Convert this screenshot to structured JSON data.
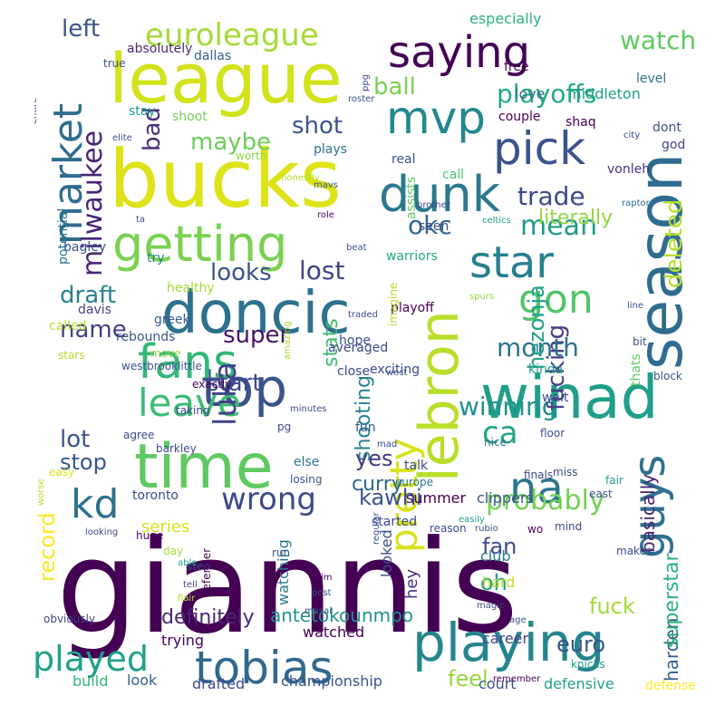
{
  "colors": {
    "background": "#ffffff",
    "palette": "viridis",
    "dark_purple": "#440154",
    "indigo": "#3b528b",
    "teal": "#21918c",
    "green": "#5ec962",
    "yellow": "#fde725"
  },
  "words": [
    {
      "text": "giannis",
      "color": "#440154"
    },
    {
      "text": "bucks",
      "color": "#dde318"
    },
    {
      "text": "season",
      "color": "#2f6c8e"
    },
    {
      "text": "league",
      "color": "#d2e21b"
    },
    {
      "text": "lebron",
      "color": "#b8de29"
    },
    {
      "text": "saying",
      "color": "#440154"
    },
    {
      "text": "doncic",
      "color": "#2c728e"
    },
    {
      "text": "time",
      "color": "#5ec962"
    },
    {
      "text": "winad",
      "color": "#1f9e89"
    },
    {
      "text": "playing",
      "color": "#25858e"
    },
    {
      "text": "guys",
      "color": "#2d708e"
    },
    {
      "text": "tobias",
      "color": "#31688e"
    },
    {
      "text": "top",
      "color": "#3b528b"
    },
    {
      "text": "getting",
      "color": "#7ad151"
    },
    {
      "text": "dunk",
      "color": "#2a788e"
    },
    {
      "text": "mvp",
      "color": "#23888e"
    },
    {
      "text": "pick",
      "color": "#3b528b"
    },
    {
      "text": "market",
      "color": "#2e6d8e"
    },
    {
      "text": "pretty",
      "color": "#d8e219"
    },
    {
      "text": "fans",
      "color": "#35b779"
    },
    {
      "text": "na",
      "color": "#2a778e"
    },
    {
      "text": "kd",
      "color": "#2c718e"
    },
    {
      "text": "star",
      "color": "#27808e"
    },
    {
      "text": "leave",
      "color": "#3dbc74"
    },
    {
      "text": "played",
      "color": "#1fa188"
    },
    {
      "text": "euroleague",
      "color": "#a5db36"
    },
    {
      "text": "gon",
      "color": "#52c569"
    },
    {
      "text": "ca",
      "color": "#20a486"
    },
    {
      "text": "wrong",
      "color": "#3e4989"
    },
    {
      "text": "luka",
      "color": "#414487"
    },
    {
      "text": "milwaukee",
      "color": "#482475"
    },
    {
      "text": "winning",
      "color": "#21918c"
    },
    {
      "text": "probably",
      "color": "#75d054"
    },
    {
      "text": "deleted",
      "color": "#b5de2b"
    },
    {
      "text": "fucking",
      "color": "#433e85"
    },
    {
      "text": "mean",
      "color": "#1e9b8a"
    },
    {
      "text": "watch",
      "color": "#5ec962"
    },
    {
      "text": "playoffs",
      "color": "#22a884"
    },
    {
      "text": "trade",
      "color": "#3e4989"
    },
    {
      "text": "maybe",
      "color": "#6ece58"
    },
    {
      "text": "shot",
      "color": "#3b528b"
    },
    {
      "text": "bad",
      "color": "#472d7b"
    },
    {
      "text": "left",
      "color": "#3b528b"
    },
    {
      "text": "ball",
      "color": "#7ad151"
    },
    {
      "text": "okc",
      "color": "#31688e"
    },
    {
      "text": "lost",
      "color": "#414487"
    },
    {
      "text": "looks",
      "color": "#3b528b"
    },
    {
      "text": "draft",
      "color": "#26828e"
    },
    {
      "text": "lot",
      "color": "#3b528b"
    },
    {
      "text": "name",
      "color": "#433e85"
    },
    {
      "text": "super",
      "color": "#471365"
    },
    {
      "text": "month",
      "color": "#2c728e"
    },
    {
      "text": "hezonja",
      "color": "#1f9e89"
    },
    {
      "text": "start",
      "color": "#3e4989"
    },
    {
      "text": "stop",
      "color": "#39568c"
    },
    {
      "text": "yes",
      "color": "#453781"
    },
    {
      "text": "kawhi",
      "color": "#3b528b"
    },
    {
      "text": "fan",
      "color": "#3e4989"
    },
    {
      "text": "oh",
      "color": "#1f9e89"
    },
    {
      "text": "fuck",
      "color": "#a0da39"
    },
    {
      "text": "euro",
      "color": "#3b528b"
    },
    {
      "text": "feel",
      "color": "#93d741"
    },
    {
      "text": "record",
      "color": "#fde725"
    },
    {
      "text": "definitely",
      "color": "#482878"
    },
    {
      "text": "antetokounmpo",
      "color": "#20928c"
    },
    {
      "text": "harden",
      "color": "#355f8d"
    },
    {
      "text": "superstar",
      "color": "#2db27d"
    },
    {
      "text": "basically",
      "color": "#482475"
    },
    {
      "text": "literally",
      "color": "#93d741"
    },
    {
      "text": "shooting",
      "color": "#26828e"
    },
    {
      "text": "curry",
      "color": "#31688e"
    },
    {
      "text": "stats",
      "color": "#3fbc73"
    },
    {
      "text": "championship",
      "color": "#3b528b"
    },
    {
      "text": "drafted",
      "color": "#3e4989"
    },
    {
      "text": "watched",
      "color": "#440154"
    },
    {
      "text": "trying",
      "color": "#440154"
    },
    {
      "text": "look",
      "color": "#355f8d"
    },
    {
      "text": "build",
      "color": "#35b779"
    },
    {
      "text": "defensive",
      "color": "#1fa188"
    },
    {
      "text": "defense",
      "color": "#fde725"
    },
    {
      "text": "court",
      "color": "#3b528b"
    },
    {
      "text": "series",
      "color": "#d8e219"
    },
    {
      "text": "watching",
      "color": "#2a788e"
    },
    {
      "text": "looked",
      "color": "#3b528b"
    },
    {
      "text": "hey",
      "color": "#46337e"
    },
    {
      "text": "club",
      "color": "#277f8e"
    },
    {
      "text": "hard",
      "color": "#bddf26"
    },
    {
      "text": "career",
      "color": "#3e4989"
    },
    {
      "text": "summer",
      "color": "#440154"
    },
    {
      "text": "clippers",
      "color": "#3b528b"
    },
    {
      "text": "especially",
      "color": "#2db27d"
    },
    {
      "text": "love",
      "color": "#2c728e"
    },
    {
      "text": "middleton",
      "color": "#1f9e89"
    },
    {
      "text": "absolutely",
      "color": "#482878"
    },
    {
      "text": "dallas",
      "color": "#355f8d"
    },
    {
      "text": "level",
      "color": "#2c728e"
    },
    {
      "text": "free",
      "color": "#440154"
    },
    {
      "text": "dont",
      "color": "#3b528b"
    },
    {
      "text": "couple",
      "color": "#440154"
    },
    {
      "text": "shaq",
      "color": "#440154"
    },
    {
      "text": "god",
      "color": "#414487"
    },
    {
      "text": "real",
      "color": "#3b528b"
    },
    {
      "text": "call",
      "color": "#4ac16d"
    },
    {
      "text": "plays",
      "color": "#2c728e"
    },
    {
      "text": "shoot",
      "color": "#75d054"
    },
    {
      "text": "stay",
      "color": "#1f9e89"
    },
    {
      "text": "true",
      "color": "#3b528b"
    },
    {
      "text": "worth",
      "color": "#8fd744"
    },
    {
      "text": "vonleh",
      "color": "#472d7b"
    },
    {
      "text": "seen",
      "color": "#3e4989"
    },
    {
      "text": "assists",
      "color": "#5ec962"
    },
    {
      "text": "warriors",
      "color": "#22a884"
    },
    {
      "text": "try",
      "color": "#26828e"
    },
    {
      "text": "healthy",
      "color": "#a5db36"
    },
    {
      "text": "bagley",
      "color": "#3b528b"
    },
    {
      "text": "potential",
      "color": "#2a788e"
    },
    {
      "text": "davis",
      "color": "#433e85"
    },
    {
      "text": "greek",
      "color": "#355f8d"
    },
    {
      "text": "called",
      "color": "#b5de2b"
    },
    {
      "text": "rebounds",
      "color": "#3b528b"
    },
    {
      "text": "averaged",
      "color": "#3e4989"
    },
    {
      "text": "playoff",
      "color": "#440154"
    },
    {
      "text": "hope",
      "color": "#3b528b"
    },
    {
      "text": "wait",
      "color": "#3e4989"
    },
    {
      "text": "bit",
      "color": "#3b528b"
    },
    {
      "text": "exciting",
      "color": "#3e4989"
    },
    {
      "text": "kinda",
      "color": "#1f9e89"
    },
    {
      "text": "thats",
      "color": "#5ec962"
    },
    {
      "text": "block",
      "color": "#3b528b"
    },
    {
      "text": "close",
      "color": "#3e4989"
    },
    {
      "text": "move",
      "color": "#93d741"
    },
    {
      "text": "stars",
      "color": "#b5de2b"
    },
    {
      "text": "westbrooklittle",
      "color": "#3b528b"
    },
    {
      "text": "exactly",
      "color": "#440154"
    },
    {
      "text": "barkley",
      "color": "#3e4989"
    },
    {
      "text": "floor",
      "color": "#3b528b"
    },
    {
      "text": "taking",
      "color": "#3e4989"
    },
    {
      "text": "fun",
      "color": "#3b528b"
    },
    {
      "text": "agree",
      "color": "#3e4989"
    },
    {
      "text": "pg",
      "color": "#3e4989"
    },
    {
      "text": "else",
      "color": "#2c728e"
    },
    {
      "text": "talk",
      "color": "#3e4989"
    },
    {
      "text": "finals",
      "color": "#3e4989"
    },
    {
      "text": "nice",
      "color": "#2c728e"
    },
    {
      "text": "fair",
      "color": "#1f9e89"
    },
    {
      "text": "miss",
      "color": "#3e4989"
    },
    {
      "text": "easy",
      "color": "#d8e219"
    },
    {
      "text": "losing",
      "color": "#3b528b"
    },
    {
      "text": "toronto",
      "color": "#3e4989"
    },
    {
      "text": "europe",
      "color": "#2c728e"
    },
    {
      "text": "east",
      "color": "#3b528b"
    },
    {
      "text": "huge",
      "color": "#440154"
    },
    {
      "text": "started",
      "color": "#3e4989"
    },
    {
      "text": "reason",
      "color": "#3e4989"
    },
    {
      "text": "wo",
      "color": "#440154"
    },
    {
      "text": "easily",
      "color": "#1f9e89"
    },
    {
      "text": "rubio",
      "color": "#3b528b"
    },
    {
      "text": "mind",
      "color": "#3e4989"
    },
    {
      "text": "makes",
      "color": "#3e4989"
    },
    {
      "text": "day",
      "color": "#a5db36"
    },
    {
      "text": "run",
      "color": "#3b528b"
    },
    {
      "text": "step",
      "color": "#3b528b"
    },
    {
      "text": "defender",
      "color": "#440154"
    },
    {
      "text": "able",
      "color": "#1f9e89"
    },
    {
      "text": "tell",
      "color": "#3e4989"
    },
    {
      "text": "im",
      "color": "#440154"
    },
    {
      "text": "post",
      "color": "#3e4989"
    },
    {
      "text": "masai",
      "color": "#3b528b"
    },
    {
      "text": "magic",
      "color": "#3e4989"
    },
    {
      "text": "age",
      "color": "#3b528b"
    },
    {
      "text": "flair",
      "color": "#b5de2b"
    },
    {
      "text": "knicks",
      "color": "#1f9e89"
    },
    {
      "text": "obviously",
      "color": "#3e4989"
    },
    {
      "text": "remember",
      "color": "#440154"
    },
    {
      "text": "looking",
      "color": "#3e4989"
    },
    {
      "text": "worse",
      "color": "#b5de2b"
    },
    {
      "text": "regular",
      "color": "#3b528b"
    },
    {
      "text": "mad",
      "color": "#3e4989"
    },
    {
      "text": "imagine",
      "color": "#b5de2b"
    },
    {
      "text": "spurs",
      "color": "#93d741"
    },
    {
      "text": "traded",
      "color": "#3e4989"
    },
    {
      "text": "amazing",
      "color": "#a5db36"
    },
    {
      "text": "west",
      "color": "#3b528b"
    },
    {
      "text": "minutes",
      "color": "#3e4989"
    },
    {
      "text": "beat",
      "color": "#3b528b"
    },
    {
      "text": "role",
      "color": "#440154"
    },
    {
      "text": "ta",
      "color": "#3b528b"
    },
    {
      "text": "mavs",
      "color": "#3b528b"
    },
    {
      "text": "honestly",
      "color": "#b5de2b"
    },
    {
      "text": "brother",
      "color": "#3e4989"
    },
    {
      "text": "celtics",
      "color": "#1f9e89"
    },
    {
      "text": "raptors",
      "color": "#2c728e"
    },
    {
      "text": "line",
      "color": "#3b528b"
    },
    {
      "text": "city",
      "color": "#3e4989"
    },
    {
      "text": "roster",
      "color": "#3b528b"
    },
    {
      "text": "ppg",
      "color": "#3e4989"
    },
    {
      "text": "elite",
      "color": "#3e4989"
    },
    {
      "text": "entire",
      "color": "#3e4989"
    }
  ]
}
